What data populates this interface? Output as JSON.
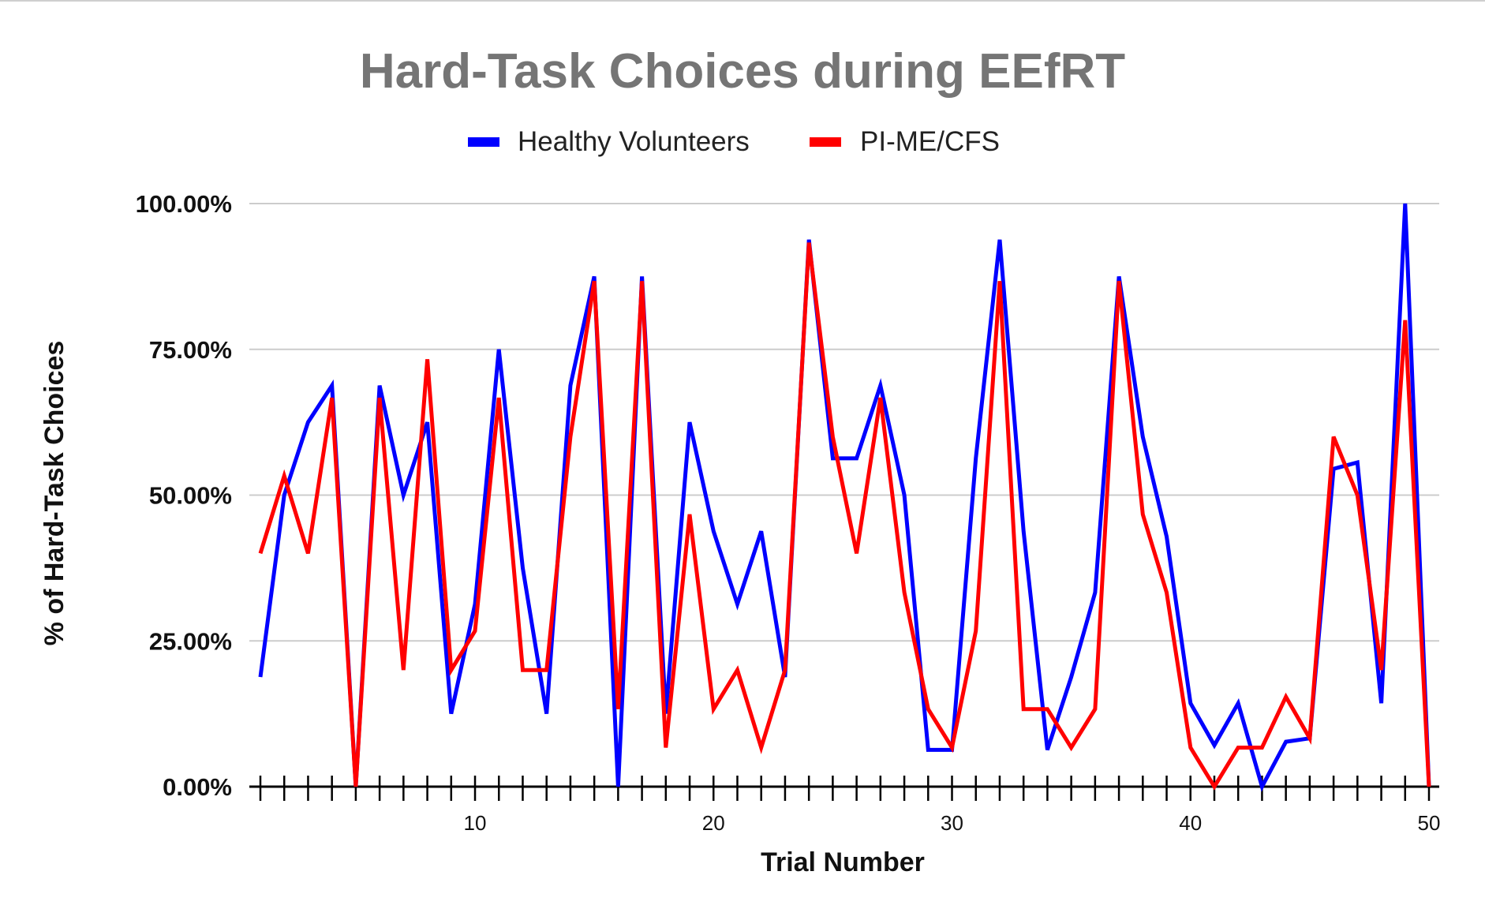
{
  "chart_data": {
    "type": "line",
    "title": "Hard-Task Choices during EEfRT",
    "xlabel": "Trial Number",
    "ylabel": "% of Hard-Task Choices",
    "xlim": [
      1,
      50
    ],
    "ylim": [
      0,
      1
    ],
    "yticks": [
      {
        "value": 0,
        "label": "0.00%"
      },
      {
        "value": 0.25,
        "label": "25.00%"
      },
      {
        "value": 0.5,
        "label": "50.00%"
      },
      {
        "value": 0.75,
        "label": "75.00%"
      },
      {
        "value": 1,
        "label": "100.00%"
      }
    ],
    "xtick_labels": [
      {
        "value": 10,
        "label": "10"
      },
      {
        "value": 20,
        "label": "20"
      },
      {
        "value": 30,
        "label": "30"
      },
      {
        "value": 40,
        "label": "40"
      },
      {
        "value": 50,
        "label": "50"
      }
    ],
    "grid": true,
    "legend_position": "top",
    "x": [
      1,
      2,
      3,
      4,
      5,
      6,
      7,
      8,
      9,
      10,
      11,
      12,
      13,
      14,
      15,
      16,
      17,
      18,
      19,
      20,
      21,
      22,
      23,
      24,
      25,
      26,
      27,
      28,
      29,
      30,
      31,
      32,
      33,
      34,
      35,
      36,
      37,
      38,
      39,
      40,
      41,
      42,
      43,
      44,
      45,
      46,
      47,
      48,
      49,
      50
    ],
    "series": [
      {
        "name": "Healthy Volunteers",
        "color": "#0000ff",
        "values": [
          0.188,
          0.5,
          0.625,
          0.688,
          0.0,
          0.688,
          0.5,
          0.625,
          0.125,
          0.313,
          0.75,
          0.375,
          0.125,
          0.688,
          0.875,
          0.0,
          0.875,
          0.125,
          0.625,
          0.438,
          0.313,
          0.438,
          0.188,
          0.938,
          0.563,
          0.563,
          0.688,
          0.5,
          0.063,
          0.063,
          0.563,
          0.938,
          0.438,
          0.063,
          0.188,
          0.333,
          0.875,
          0.6,
          0.429,
          0.143,
          0.071,
          0.143,
          0.0,
          0.077,
          0.083,
          0.545,
          0.556,
          0.143,
          1.0,
          0.0
        ]
      },
      {
        "name": "PI-ME/CFS",
        "color": "#ff0000",
        "values": [
          0.4,
          0.533,
          0.4,
          0.667,
          0.0,
          0.667,
          0.2,
          0.733,
          0.2,
          0.267,
          0.667,
          0.2,
          0.2,
          0.6,
          0.867,
          0.133,
          0.867,
          0.067,
          0.467,
          0.133,
          0.2,
          0.067,
          0.2,
          0.933,
          0.6,
          0.4,
          0.667,
          0.333,
          0.133,
          0.067,
          0.267,
          0.867,
          0.133,
          0.133,
          0.067,
          0.133,
          0.867,
          0.467,
          0.333,
          0.067,
          0.0,
          0.067,
          0.067,
          0.154,
          0.083,
          0.6,
          0.5,
          0.2,
          0.8,
          0.0
        ]
      }
    ]
  }
}
